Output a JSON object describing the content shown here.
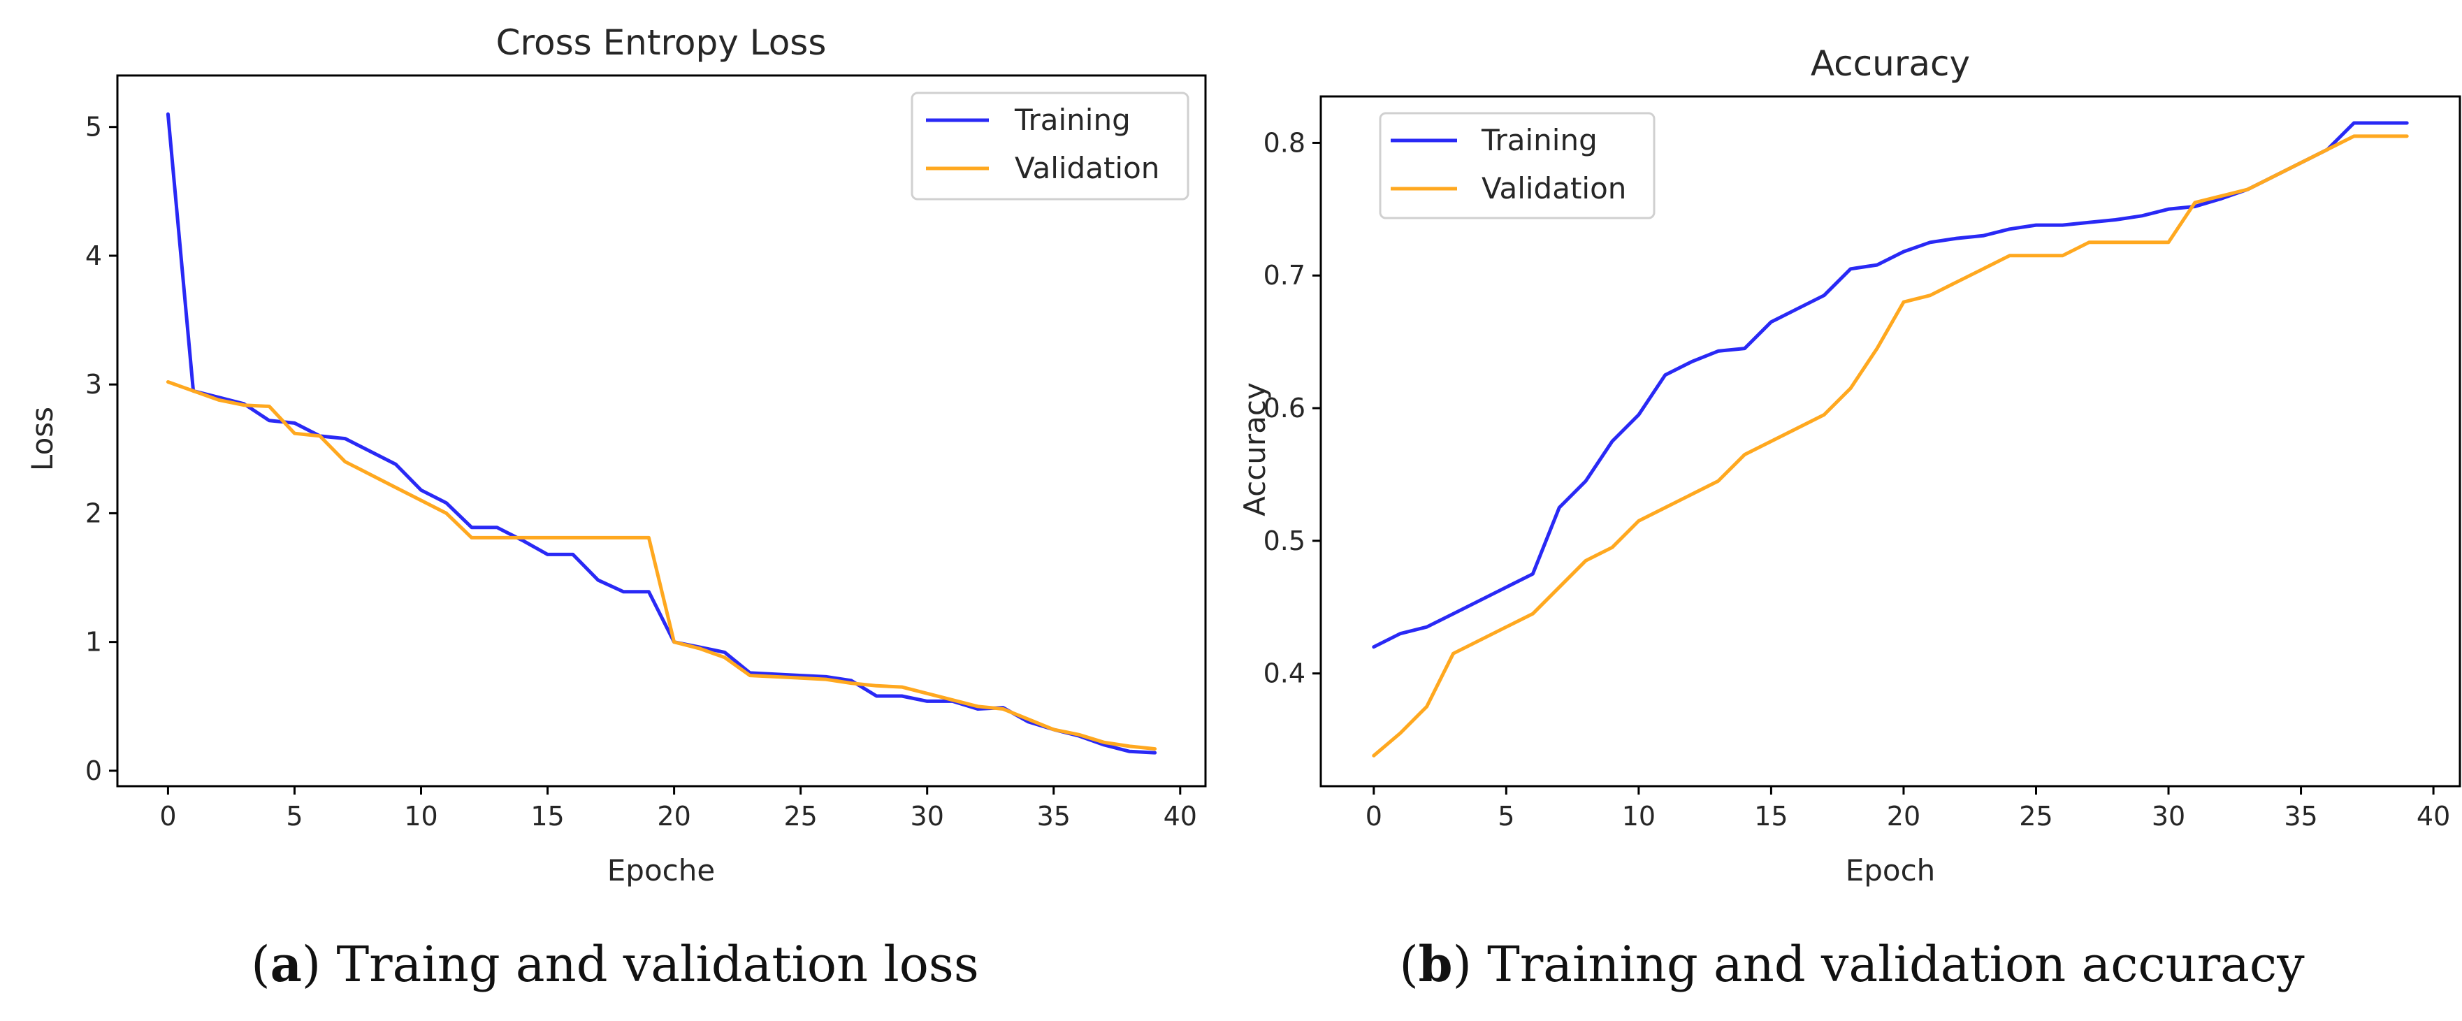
{
  "chart_data": [
    {
      "type": "line",
      "title": "Cross Entropy Loss",
      "xlabel": "Epoche",
      "ylabel": "Loss",
      "xlim": [
        -2,
        41
      ],
      "ylim": [
        -0.12,
        5.4
      ],
      "xticks": [
        0,
        5,
        10,
        15,
        20,
        25,
        30,
        35,
        40
      ],
      "yticks": [
        0,
        1,
        2,
        3,
        4,
        5
      ],
      "legend": "top-right",
      "grid": false,
      "x": [
        0,
        1,
        2,
        3,
        4,
        5,
        6,
        7,
        8,
        9,
        10,
        11,
        12,
        13,
        14,
        15,
        16,
        17,
        18,
        19,
        20,
        21,
        22,
        23,
        24,
        25,
        26,
        27,
        28,
        29,
        30,
        31,
        32,
        33,
        34,
        35,
        36,
        37,
        38,
        39
      ],
      "series": [
        {
          "name": "Training",
          "color": "#2929f5",
          "values": [
            5.1,
            2.95,
            2.9,
            2.85,
            2.72,
            2.7,
            2.6,
            2.58,
            2.48,
            2.38,
            2.18,
            2.08,
            1.89,
            1.89,
            1.79,
            1.68,
            1.68,
            1.48,
            1.39,
            1.39,
            1.0,
            0.96,
            0.92,
            0.76,
            0.75,
            0.74,
            0.73,
            0.7,
            0.58,
            0.58,
            0.54,
            0.54,
            0.48,
            0.49,
            0.38,
            0.32,
            0.27,
            0.2,
            0.15,
            0.14
          ]
        },
        {
          "name": "Validation",
          "color": "#ffa81f",
          "values": [
            3.02,
            2.95,
            2.88,
            2.84,
            2.83,
            2.62,
            2.6,
            2.4,
            2.3,
            2.2,
            2.1,
            2.0,
            1.81,
            1.81,
            1.81,
            1.81,
            1.81,
            1.81,
            1.81,
            1.81,
            1.0,
            0.95,
            0.88,
            0.74,
            0.73,
            0.72,
            0.71,
            0.68,
            0.66,
            0.65,
            0.6,
            0.55,
            0.5,
            0.48,
            0.4,
            0.32,
            0.28,
            0.22,
            0.19,
            0.17
          ]
        }
      ]
    },
    {
      "type": "line",
      "title": "Accuracy",
      "xlabel": "Epoch",
      "ylabel": "Accuracy",
      "xlim": [
        -2,
        41
      ],
      "ylim": [
        0.315,
        0.835
      ],
      "xticks": [
        0,
        5,
        10,
        15,
        20,
        25,
        30,
        35,
        40
      ],
      "yticks": [
        0.4,
        0.5,
        0.6,
        0.7,
        0.8
      ],
      "legend": "top-left",
      "grid": false,
      "x": [
        0,
        1,
        2,
        3,
        4,
        5,
        6,
        7,
        8,
        9,
        10,
        11,
        12,
        13,
        14,
        15,
        16,
        17,
        18,
        19,
        20,
        21,
        22,
        23,
        24,
        25,
        26,
        27,
        28,
        29,
        30,
        31,
        32,
        33,
        34,
        35,
        36,
        37,
        38,
        39
      ],
      "series": [
        {
          "name": "Training",
          "color": "#2929f5",
          "values": [
            0.42,
            0.43,
            0.435,
            0.445,
            0.455,
            0.465,
            0.475,
            0.525,
            0.545,
            0.575,
            0.595,
            0.625,
            0.635,
            0.643,
            0.645,
            0.665,
            0.675,
            0.685,
            0.705,
            0.708,
            0.718,
            0.725,
            0.728,
            0.73,
            0.735,
            0.738,
            0.738,
            0.74,
            0.742,
            0.745,
            0.75,
            0.752,
            0.758,
            0.765,
            0.775,
            0.785,
            0.795,
            0.815,
            0.815,
            0.815
          ]
        },
        {
          "name": "Validation",
          "color": "#ffa81f",
          "values": [
            0.338,
            0.355,
            0.375,
            0.415,
            0.425,
            0.435,
            0.445,
            0.465,
            0.485,
            0.495,
            0.515,
            0.525,
            0.535,
            0.545,
            0.565,
            0.575,
            0.585,
            0.595,
            0.615,
            0.645,
            0.68,
            0.685,
            0.695,
            0.705,
            0.715,
            0.715,
            0.715,
            0.725,
            0.725,
            0.725,
            0.725,
            0.755,
            0.76,
            0.765,
            0.775,
            0.785,
            0.795,
            0.805,
            0.805,
            0.805
          ]
        }
      ]
    }
  ],
  "captions": [
    {
      "prefix": "a",
      "text": "Traing and validation loss"
    },
    {
      "prefix": "b",
      "text": "Training and validation accuracy"
    }
  ]
}
